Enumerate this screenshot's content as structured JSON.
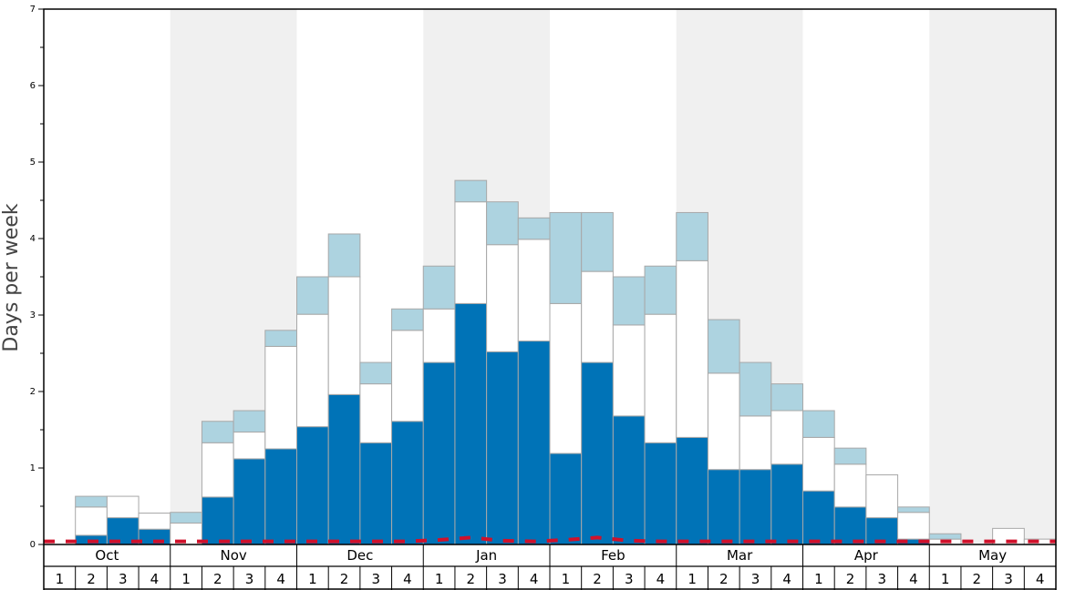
{
  "chart_data": {
    "type": "bar",
    "ylabel": "Days per week",
    "ylim": [
      0,
      7
    ],
    "yticks": [
      "0",
      "1",
      "2",
      "3",
      "4",
      "5",
      "6",
      "7"
    ],
    "stacked": true,
    "months": [
      "Oct",
      "Nov",
      "Dec",
      "Jan",
      "Feb",
      "Mar",
      "Apr",
      "May"
    ],
    "weeks": [
      "1",
      "2",
      "3",
      "4"
    ],
    "categories": [
      "Oct 1",
      "Oct 2",
      "Oct 3",
      "Oct 4",
      "Nov 1",
      "Nov 2",
      "Nov 3",
      "Nov 4",
      "Dec 1",
      "Dec 2",
      "Dec 3",
      "Dec 4",
      "Jan 1",
      "Jan 2",
      "Jan 3",
      "Jan 4",
      "Feb 1",
      "Feb 2",
      "Feb 3",
      "Feb 4",
      "Mar 1",
      "Mar 2",
      "Mar 3",
      "Mar 4",
      "Apr 1",
      "Apr 2",
      "Apr 3",
      "Apr 4",
      "May 1",
      "May 2",
      "May 3",
      "May 4"
    ],
    "series": [
      {
        "color": "#0073b7",
        "values": [
          0,
          0.12,
          0.35,
          0.2,
          0,
          0.62,
          1.12,
          1.25,
          1.54,
          1.96,
          1.33,
          1.61,
          2.38,
          3.15,
          2.52,
          2.66,
          1.19,
          2.38,
          1.68,
          1.33,
          1.4,
          0.98,
          0.98,
          1.05,
          0.7,
          0.49,
          0.35,
          0.07,
          0,
          0,
          0,
          0
        ]
      },
      {
        "color": "#ffffff",
        "values": [
          0,
          0.37,
          0.28,
          0.21,
          0.28,
          0.71,
          0.35,
          1.34,
          1.47,
          1.54,
          0.77,
          1.19,
          0.7,
          1.33,
          1.4,
          1.33,
          1.96,
          1.19,
          1.19,
          1.68,
          2.31,
          1.26,
          0.7,
          0.7,
          0.7,
          0.56,
          0.56,
          0.35,
          0.07,
          0,
          0.21,
          0.07
        ]
      },
      {
        "color": "#add3e0",
        "values": [
          0,
          0.14,
          0,
          0,
          0.14,
          0.28,
          0.28,
          0.21,
          0.49,
          0.56,
          0.28,
          0.28,
          0.56,
          0.28,
          0.56,
          0.28,
          1.19,
          0.77,
          0.63,
          0.63,
          0.63,
          0.7,
          0.7,
          0.35,
          0.35,
          0.21,
          0,
          0.07,
          0.07,
          0,
          0,
          0
        ]
      }
    ],
    "trend_line": {
      "color": "#d0112b",
      "style": "dashed",
      "values": [
        0.04,
        0.04,
        0.04,
        0.04,
        0.04,
        0.04,
        0.04,
        0.04,
        0.04,
        0.04,
        0.04,
        0.04,
        0.06,
        0.09,
        0.05,
        0.04,
        0.06,
        0.09,
        0.05,
        0.04,
        0.04,
        0.04,
        0.04,
        0.04,
        0.04,
        0.04,
        0.04,
        0.04,
        0.04,
        0.04,
        0.04,
        0.04
      ]
    },
    "shaded_months": [
      "Nov",
      "Jan",
      "Mar",
      "May"
    ]
  }
}
